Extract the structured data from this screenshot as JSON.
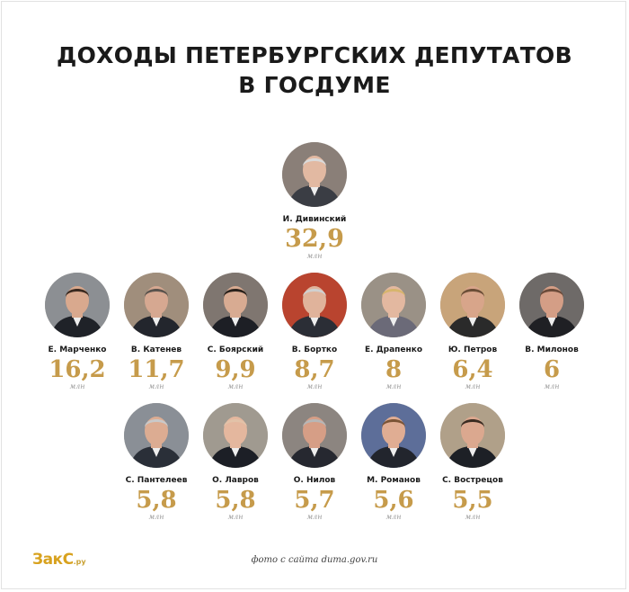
{
  "title_line1": "ДОХОДЫ ПЕТЕРБУРГСКИХ ДЕПУТАТОВ",
  "title_line2": "В ГОСДУМЕ",
  "unit": "млн",
  "colors": {
    "value": "#c69b4b",
    "title": "#1a1a1a",
    "logo": "#d8a21f"
  },
  "people": [
    {
      "name": "И. Дивинский",
      "value": "32,9",
      "unit": "млн",
      "bg": "#8a7f78",
      "skin": "#e2b9a2",
      "hair": "#dadada",
      "suit": "#3a3d44"
    },
    {
      "name": "Е. Марченко",
      "value": "16,2",
      "unit": "млн",
      "bg": "#8c8f93",
      "skin": "#d9a98e",
      "hair": "#3a2a20",
      "suit": "#1f2228"
    },
    {
      "name": "В. Катенев",
      "value": "11,7",
      "unit": "млн",
      "bg": "#a08e7c",
      "skin": "#d6a891",
      "hair": "#5a534d",
      "suit": "#23262d"
    },
    {
      "name": "С. Боярский",
      "value": "9,9",
      "unit": "млн",
      "bg": "#7f7670",
      "skin": "#d8ab92",
      "hair": "#2a221c",
      "suit": "#1d1f25"
    },
    {
      "name": "В. Бортко",
      "value": "8,7",
      "unit": "млн",
      "bg": "#b9442f",
      "skin": "#e0b39b",
      "hair": "#d0d0d0",
      "suit": "#2b2e36"
    },
    {
      "name": "Е. Драпенко",
      "value": "8",
      "unit": "млн",
      "bg": "#9a9186",
      "skin": "#e3b8a0",
      "hair": "#d7b56d",
      "suit": "#6b6a78"
    },
    {
      "name": "Ю. Петров",
      "value": "6,4",
      "unit": "млн",
      "bg": "#c8a47a",
      "skin": "#d8a58a",
      "hair": "#6b4e37",
      "suit": "#2a2a2a"
    },
    {
      "name": "В. Милонов",
      "value": "6",
      "unit": "млн",
      "bg": "#6e6a68",
      "skin": "#d49e86",
      "hair": "#6b4b3a",
      "suit": "#1f2024"
    },
    {
      "name": "С. Пантелеев",
      "value": "5,8",
      "unit": "млн",
      "bg": "#8a8f96",
      "skin": "#dcac92",
      "hair": "#c9c9c9",
      "suit": "#2a2f38"
    },
    {
      "name": "О. Лавров",
      "value": "5,8",
      "unit": "млн",
      "bg": "#a09a90",
      "skin": "#e4b79e",
      "hair": "#e2c2a8",
      "suit": "#1c1f26"
    },
    {
      "name": "О. Нилов",
      "value": "5,7",
      "unit": "млн",
      "bg": "#8c8580",
      "skin": "#d69e86",
      "hair": "#b7b7b7",
      "suit": "#262830"
    },
    {
      "name": "М. Романов",
      "value": "5,6",
      "unit": "млн",
      "bg": "#5d6e99",
      "skin": "#e0ad93",
      "hair": "#7a5436",
      "suit": "#22252d"
    },
    {
      "name": "С. Вострецов",
      "value": "5,5",
      "unit": "млн",
      "bg": "#b0a089",
      "skin": "#dba88f",
      "hair": "#3a2c22",
      "suit": "#1d2026"
    }
  ],
  "footer": {
    "logo_main": "ЗакС",
    "logo_suffix": ".ру",
    "credit": "фото с сайта duma.gov.ru"
  }
}
